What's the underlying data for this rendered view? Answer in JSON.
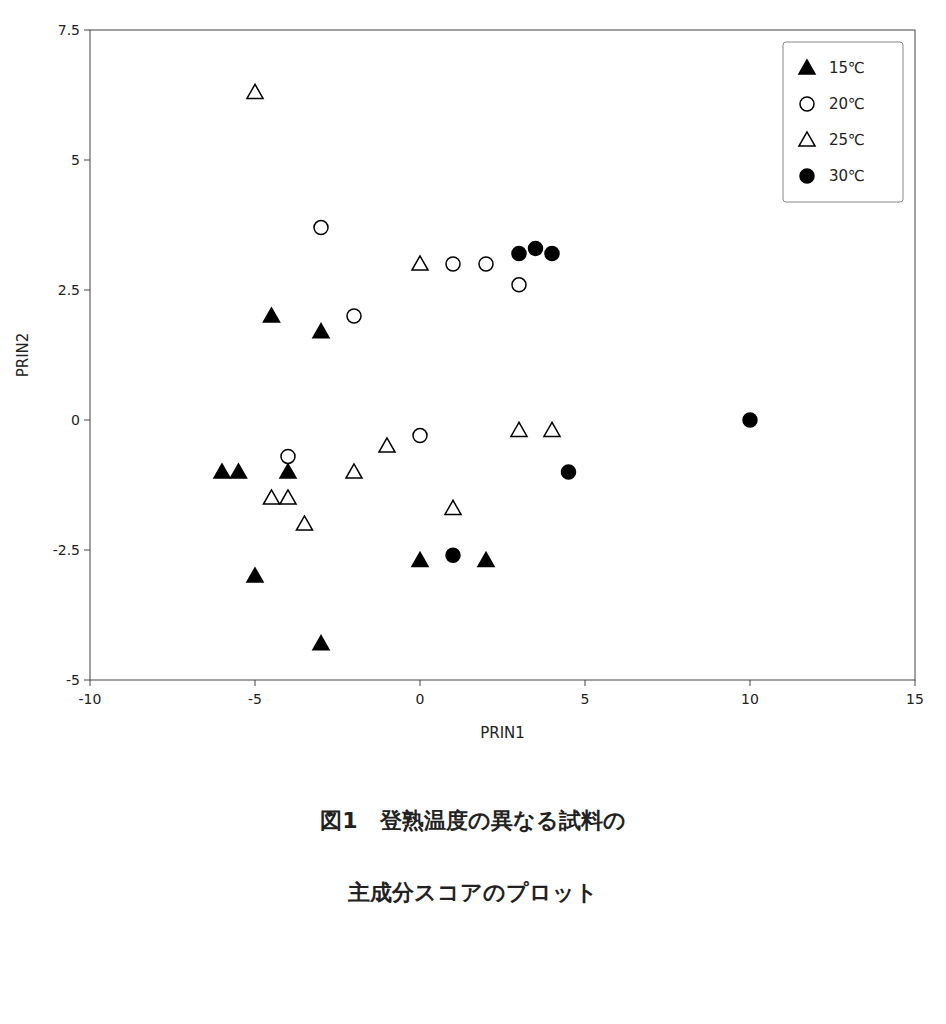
{
  "chart_data": {
    "type": "scatter",
    "title": "図1　登熟温度の異なる試料の",
    "subtitle": "主成分スコアのプロット",
    "x_label": "PRIN1",
    "y_label": "PRIN2",
    "xlim": [
      -10,
      15
    ],
    "ylim": [
      -5,
      7.5
    ],
    "xticks": [
      -10,
      -5,
      0,
      5,
      10,
      15
    ],
    "yticks": [
      -5,
      -2.5,
      0,
      2.5,
      5,
      7.5
    ],
    "grid": false,
    "legend": "upper right",
    "series": [
      {
        "name": "15℃",
        "marker": "triangle",
        "color": "#000000",
        "x": [
          -6,
          -5.5,
          -5,
          -4.5,
          -4,
          -3,
          -3,
          0,
          2
        ],
        "values": [
          -1.0,
          -1.0,
          -3.0,
          2.0,
          -1.0,
          1.7,
          -4.3,
          -2.7,
          -2.7
        ]
      },
      {
        "name": "20℃",
        "marker": "circle",
        "color": "#ffffff",
        "x": [
          -4,
          -3,
          -2,
          0,
          1,
          2,
          3
        ],
        "values": [
          -0.7,
          3.7,
          2.0,
          -0.3,
          3.0,
          3.0,
          2.6
        ]
      },
      {
        "name": "25℃",
        "marker": "triangle",
        "color": "#ffffff",
        "x": [
          -5,
          -4.5,
          -4,
          -3.5,
          -2,
          -1,
          0,
          1,
          3,
          4
        ],
        "values": [
          6.3,
          -1.5,
          -1.5,
          -2.0,
          -1.0,
          -0.5,
          3.0,
          -1.7,
          -0.2,
          -0.2
        ]
      },
      {
        "name": "30℃",
        "marker": "circle",
        "color": "#000000",
        "x": [
          1,
          3,
          3.5,
          4,
          4.5,
          10
        ],
        "values": [
          -2.6,
          3.2,
          3.3,
          3.2,
          -1.0,
          0.0
        ]
      }
    ]
  }
}
